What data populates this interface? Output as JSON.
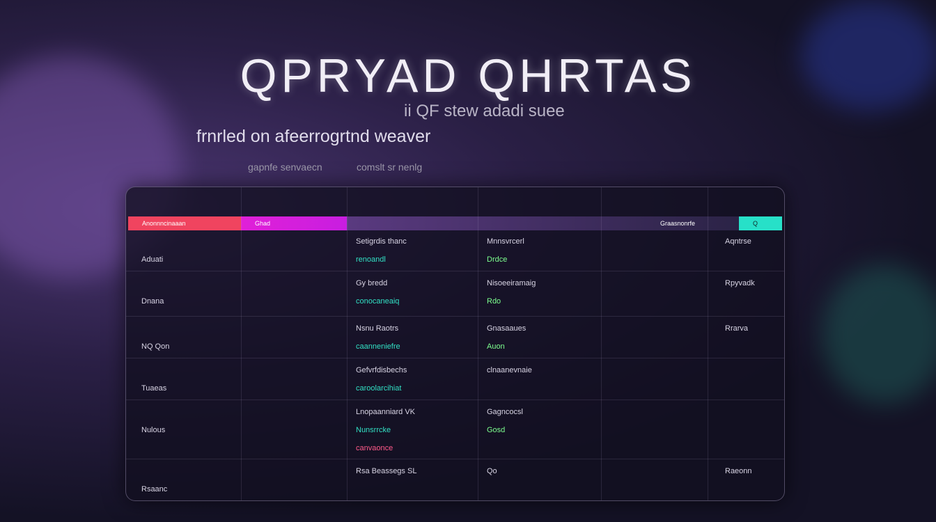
{
  "header": {
    "title": "QPRYAD QHRTAS",
    "subtitle": "ii QF stew adadi suee",
    "tagline": "frnrled on afeerrogrtnd weaver"
  },
  "toolbar": [
    "gapnfe senvaecn",
    "comslt sr nenlg"
  ],
  "table": {
    "headers": [
      "Anonnncinaaan",
      "Ghad",
      "Graasnonrfe",
      "Q"
    ],
    "rows": [
      [
        [
          "Aduati"
        ],
        [
          "Setigrdis thanc",
          "renoandl"
        ],
        [
          "Mnnsvrcerl",
          "Drdce"
        ],
        [
          "Aqntrse"
        ]
      ],
      [
        [
          "Dnana"
        ],
        [
          "Gy bredd",
          "conocaneaiq"
        ],
        [
          "Nisoeeiramaig",
          "Rdo"
        ],
        [
          "Rpyvadk"
        ]
      ],
      [
        [
          "NQ Qon"
        ],
        [
          "Nsnu Raotrs",
          "caanneniefre"
        ],
        [
          "Gnasaaues",
          "Auon"
        ],
        [
          "Rrarva"
        ]
      ],
      [
        [
          "Tuaeas"
        ],
        [
          "Gefvrfdisbechs",
          "caroolarcihiat"
        ],
        [
          "clnaanevnaie"
        ],
        []
      ],
      [
        [
          "Nulous"
        ],
        [
          "Lnopaanniard VK",
          "Nunsrrcke",
          "canvaonce"
        ],
        [
          "Gagncocsl",
          "Gosd"
        ],
        []
      ],
      [
        [
          "Rsaanc"
        ],
        [
          "Rsa Beassegs SL"
        ],
        [
          "Qo"
        ],
        [
          "Raeonn"
        ]
      ]
    ]
  }
}
